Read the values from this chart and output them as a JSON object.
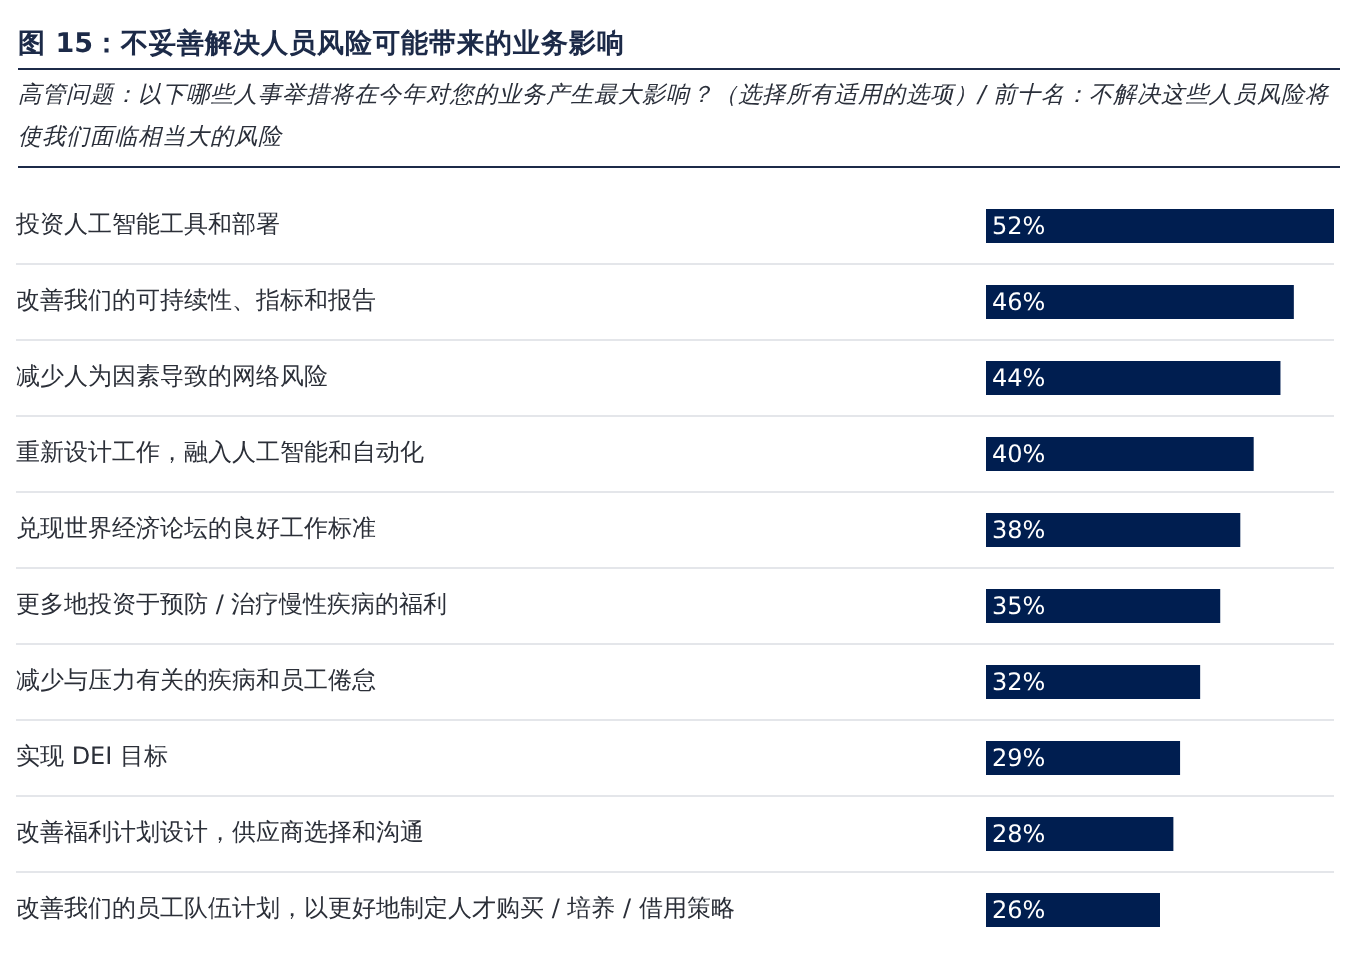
{
  "chart_data": {
    "type": "bar",
    "orientation": "horizontal",
    "title": "图 15：不妥善解决人员风险可能带来的业务影响",
    "subtitle": "高管问题：以下哪些人事举措将在今年对您的业务产生最大影响？（选择所有适用的选项）/ 前十名：不解决这些人员风险将使我们面临相当大的风险",
    "categories": [
      "投资人工智能工具和部署",
      "改善我们的可持续性、指标和报告",
      "减少人为因素导致的网络风险",
      "重新设计工作，融入人工智能和自动化",
      "兑现世界经济论坛的良好工作标准",
      "更多地投资于预防 / 治疗慢性疾病的福利",
      "减少与压力有关的疾病和员工倦怠",
      "实现 DEI 目标",
      "改善福利计划设计，供应商选择和沟通",
      "改善我们的员工队伍计划，以更好地制定人才购买 / 培养 / 借用策略"
    ],
    "values": [
      52,
      46,
      44,
      40,
      38,
      35,
      32,
      29,
      28,
      26
    ],
    "value_labels": [
      "52%",
      "46%",
      "44%",
      "40%",
      "38%",
      "35%",
      "32%",
      "29%",
      "28%",
      "26%"
    ],
    "color": "#001e50",
    "xlim": [
      0,
      52
    ],
    "tick_labels": "y",
    "grid": "y",
    "legend": false
  }
}
